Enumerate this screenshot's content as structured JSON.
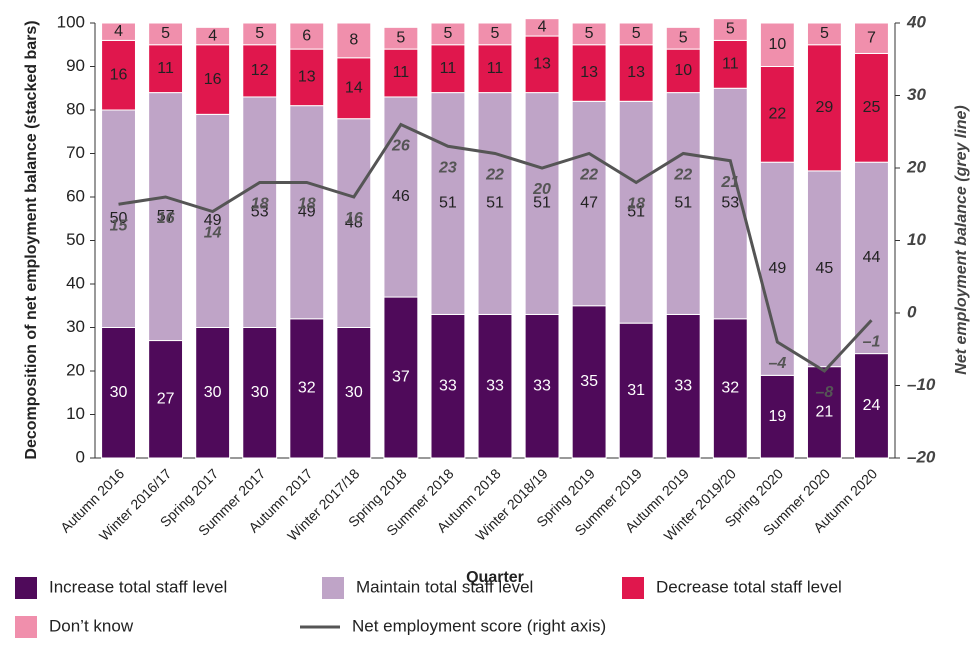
{
  "chart_data": {
    "type": "stacked_bar_line",
    "x_label": "Quarter",
    "y_label": "Decomposition of net employment balance (stacked bars)",
    "y2_label": "Net employment balance (grey line)",
    "categories": [
      "Autumn 2016",
      "Winter 2016/17",
      "Spring 2017",
      "Summer 2017",
      "Autumn 2017",
      "Winter 2017/18",
      "Spring 2018",
      "Summer 2018",
      "Autumn 2018",
      "Winter 2018/19",
      "Spring 2019",
      "Summer 2019",
      "Autumn 2019",
      "Winter 2019/20",
      "Spring 2020",
      "Summer 2020",
      "Autumn 2020"
    ],
    "series": [
      {
        "name": "Increase total staff level",
        "color": "#4f0a5a",
        "values": [
          30,
          27,
          30,
          30,
          32,
          30,
          37,
          33,
          33,
          33,
          35,
          31,
          33,
          32,
          19,
          21,
          24
        ]
      },
      {
        "name": "Maintain total staff level",
        "color": "#bfa4c7",
        "values": [
          50,
          57,
          49,
          53,
          49,
          48,
          46,
          51,
          51,
          51,
          47,
          51,
          51,
          53,
          49,
          45,
          44
        ]
      },
      {
        "name": "Decrease total staff level",
        "color": "#e0174d",
        "values": [
          16,
          11,
          16,
          12,
          13,
          14,
          11,
          11,
          11,
          13,
          13,
          13,
          10,
          11,
          22,
          29,
          25
        ]
      },
      {
        "name": "Don’t know",
        "color": "#f08fac",
        "values": [
          4,
          5,
          4,
          5,
          6,
          8,
          5,
          5,
          5,
          4,
          5,
          5,
          5,
          5,
          10,
          5,
          7
        ]
      },
      {
        "name": "Net employment score (right axis)",
        "color": "#555555",
        "axis": "y2",
        "type": "line",
        "values": [
          15,
          16,
          14,
          18,
          18,
          16,
          26,
          23,
          22,
          20,
          22,
          18,
          22,
          21,
          -4,
          -8,
          -1
        ],
        "value_labels": [
          "15",
          "16",
          "14",
          "18",
          "18",
          "16",
          "26",
          "23",
          "22",
          "20",
          "22",
          "18",
          "22",
          "21",
          "–4",
          "–8",
          "–1"
        ]
      }
    ],
    "ylim": [
      0,
      100
    ],
    "yticks": [
      0,
      10,
      20,
      30,
      40,
      50,
      60,
      70,
      80,
      90,
      100
    ],
    "y2lim": [
      -20,
      40
    ],
    "y2ticks": [
      {
        "value": -20,
        "label": "–20"
      },
      {
        "value": -10,
        "label": "–10"
      },
      0,
      10,
      20,
      30,
      40
    ]
  }
}
